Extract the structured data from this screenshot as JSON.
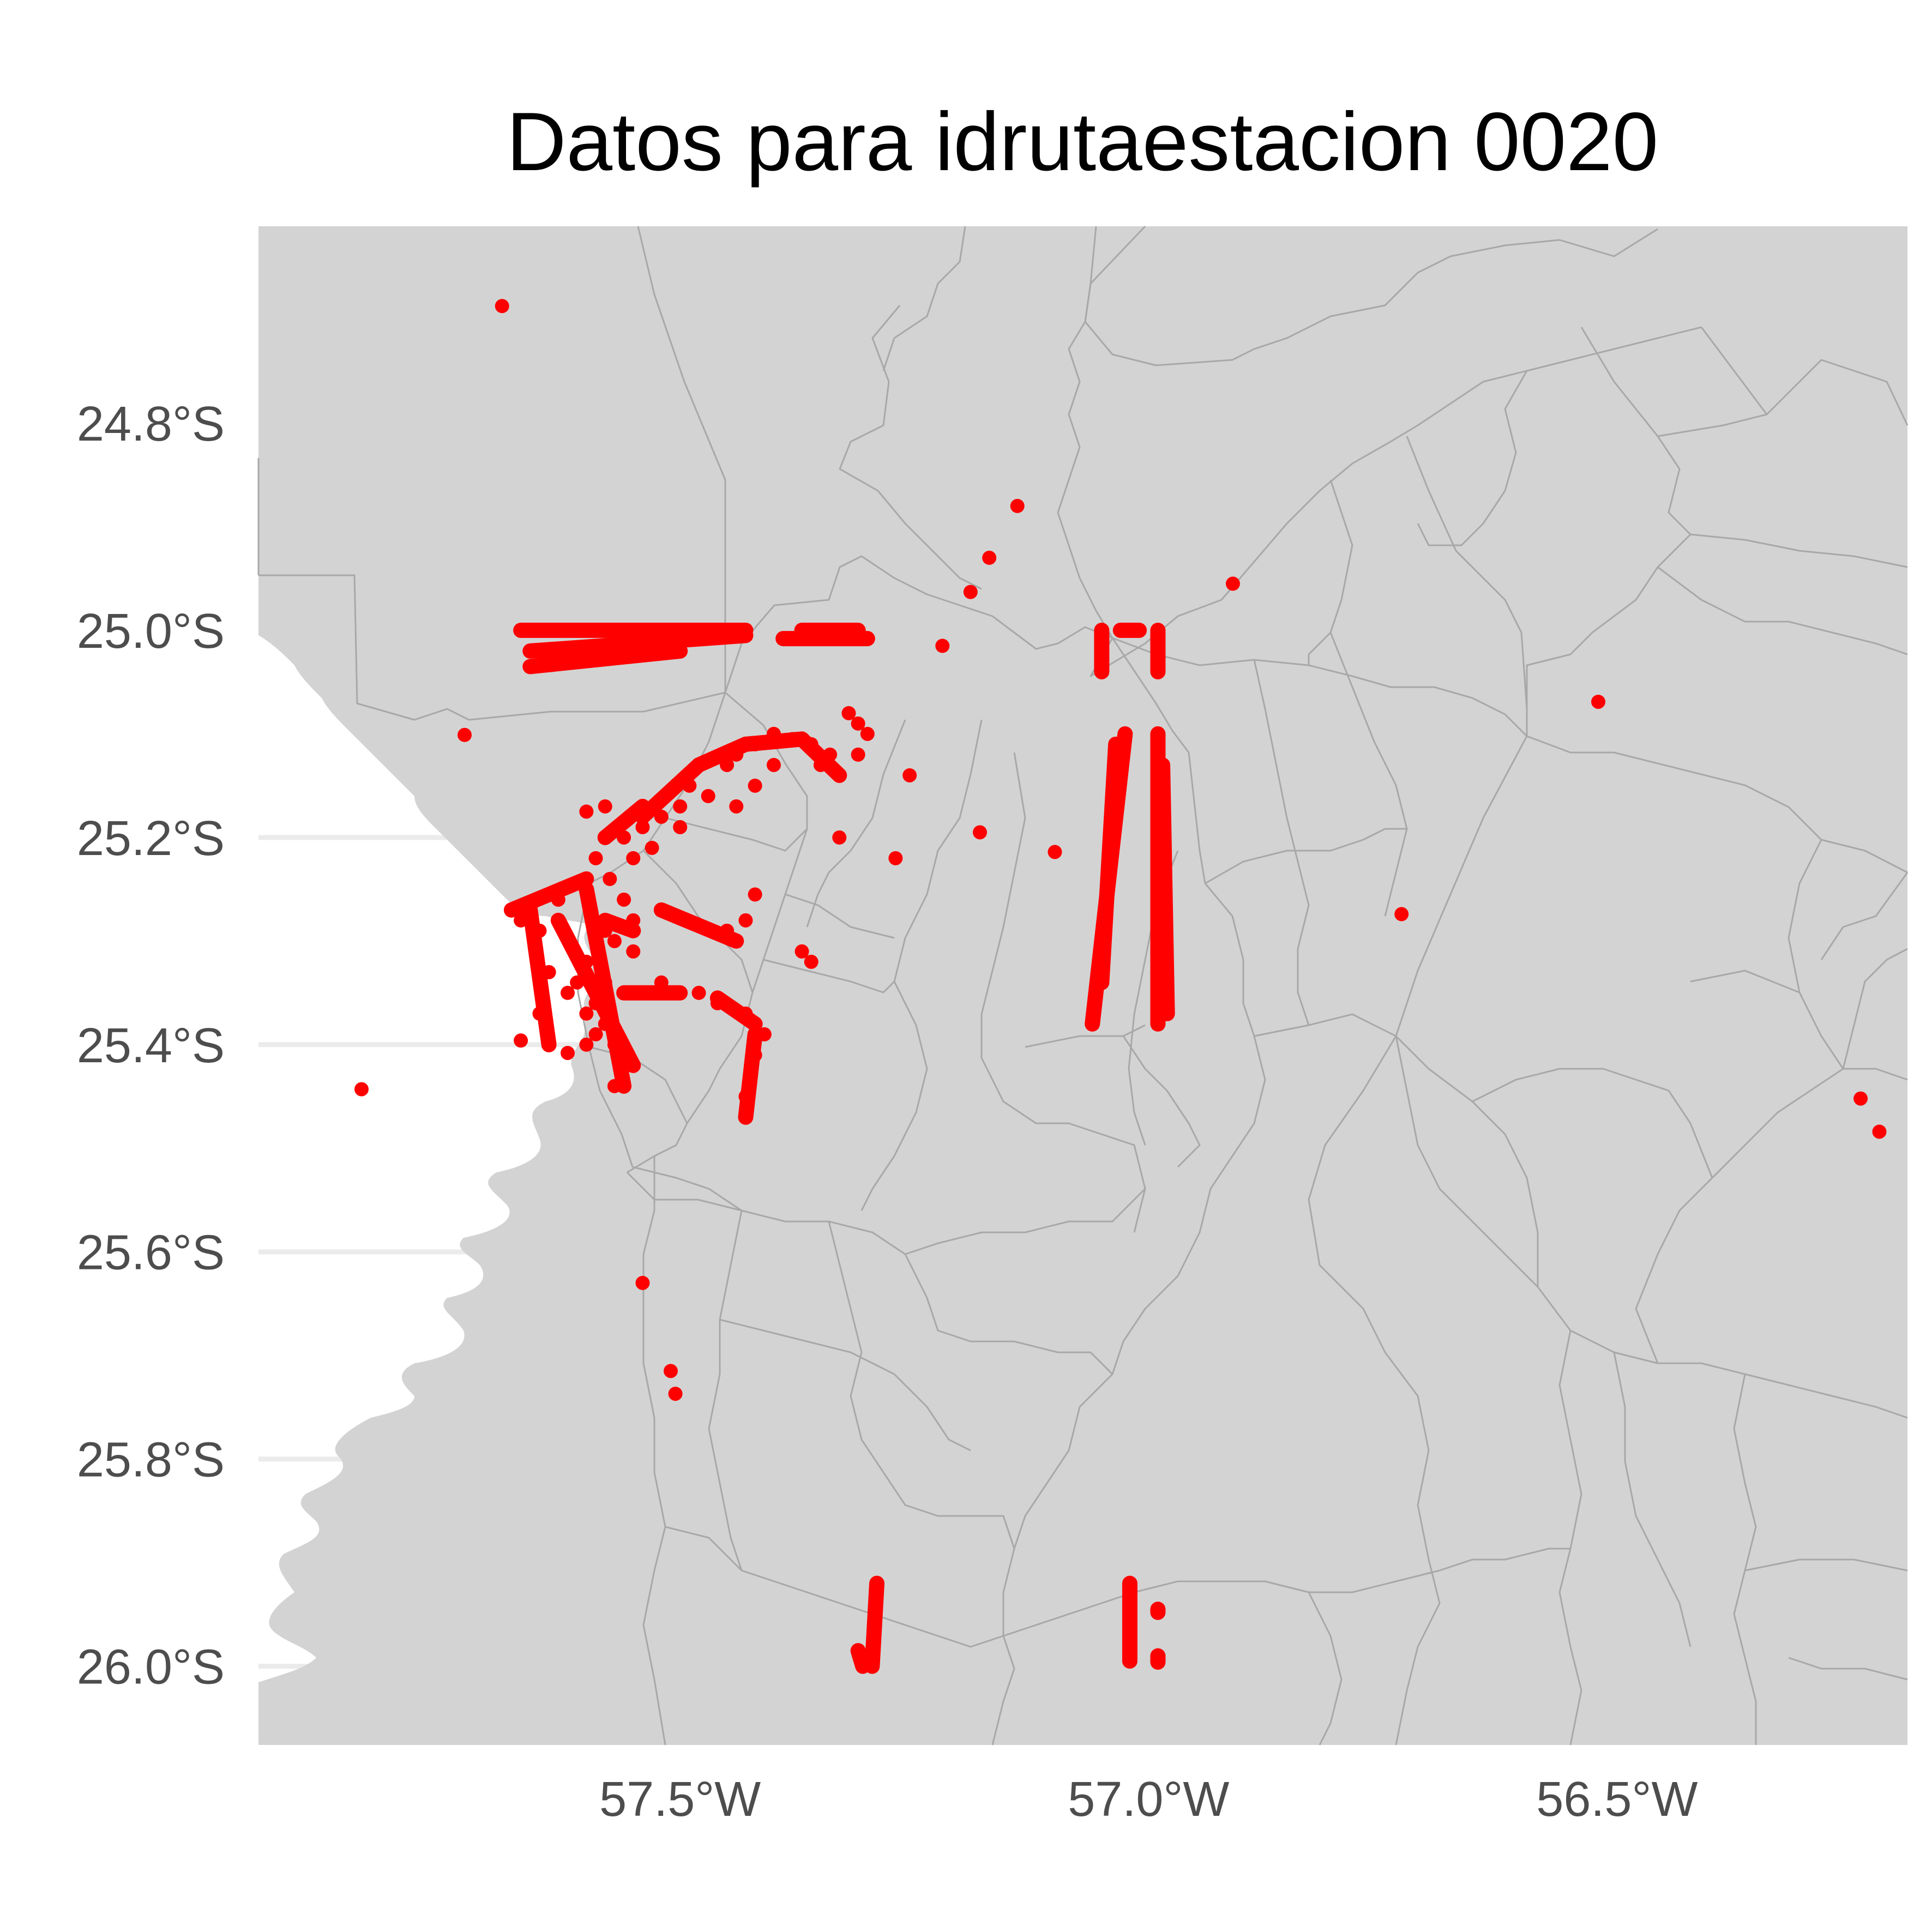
{
  "title": "Datos para idrutaestacion 0020",
  "axes": {
    "x_ticks": [
      {
        "value": -57.5,
        "label": "57.5°W"
      },
      {
        "value": -57.0,
        "label": "57.0°W"
      },
      {
        "value": -56.5,
        "label": "56.5°W"
      }
    ],
    "y_ticks": [
      {
        "value": -24.8,
        "label": "24.8°S"
      },
      {
        "value": -25.0,
        "label": "25.0°S"
      },
      {
        "value": -25.2,
        "label": "25.2°S"
      },
      {
        "value": -25.4,
        "label": "25.4°S"
      },
      {
        "value": -25.6,
        "label": "25.6°S"
      },
      {
        "value": -25.8,
        "label": "25.8°S"
      },
      {
        "value": -26.0,
        "label": "26.0°S"
      }
    ],
    "lon_range": [
      -57.95,
      -56.19
    ],
    "lat_range": [
      -26.076,
      -24.61
    ]
  },
  "colors": {
    "land": "#d3d3d3",
    "border": "#a8a8a8",
    "point": "#ff0000",
    "water": "#ffffff",
    "grid": "#ebebeb"
  },
  "map_data": {
    "type": "scatter-map",
    "points": [
      [
        -57.69,
        -24.687
      ],
      [
        -57.73,
        -25.101
      ],
      [
        -57.84,
        -25.443
      ],
      [
        -57.14,
        -24.88
      ],
      [
        -57.17,
        -24.93
      ],
      [
        -57.19,
        -24.963
      ],
      [
        -57.22,
        -25.015
      ],
      [
        -56.91,
        -24.955
      ],
      [
        -56.52,
        -25.069
      ],
      [
        -56.73,
        -25.274
      ],
      [
        -57.27,
        -25.22
      ],
      [
        -57.18,
        -25.195
      ],
      [
        -57.1,
        -25.214
      ],
      [
        -56.24,
        -25.452
      ],
      [
        -56.22,
        -25.484
      ],
      [
        -57.54,
        -25.63
      ],
      [
        -57.51,
        -25.715
      ],
      [
        -57.505,
        -25.737
      ],
      [
        -57.67,
        -25.396
      ],
      [
        -57.62,
        -25.408
      ],
      [
        -57.6,
        -25.4
      ],
      [
        -57.57,
        -25.44
      ],
      [
        -57.59,
        -25.39
      ],
      [
        -57.55,
        -25.42
      ],
      [
        -57.43,
        -25.47
      ],
      [
        -57.43,
        -25.45
      ],
      [
        -57.425,
        -25.43
      ],
      [
        -57.42,
        -25.41
      ],
      [
        -57.41,
        -25.39
      ],
      [
        -57.43,
        -25.37
      ],
      [
        -57.46,
        -25.36
      ],
      [
        -57.48,
        -25.35
      ],
      [
        -57.52,
        -25.34
      ],
      [
        -57.55,
        -25.35
      ],
      [
        -57.58,
        -25.34
      ],
      [
        -57.58,
        -25.29
      ],
      [
        -57.55,
        -25.28
      ],
      [
        -57.52,
        -25.27
      ],
      [
        -57.45,
        -25.29
      ],
      [
        -57.43,
        -25.28
      ],
      [
        -57.42,
        -25.255
      ],
      [
        -57.37,
        -25.31
      ],
      [
        -57.36,
        -25.32
      ],
      [
        -57.57,
        -25.3
      ],
      [
        -57.55,
        -25.31
      ],
      [
        -57.6,
        -25.32
      ],
      [
        -57.63,
        -25.26
      ],
      [
        -57.65,
        -25.29
      ],
      [
        -57.67,
        -25.28
      ],
      [
        -57.62,
        -25.35
      ],
      [
        -57.6,
        -25.37
      ],
      [
        -57.65,
        -25.37
      ],
      [
        -57.64,
        -25.33
      ],
      [
        -57.61,
        -25.34
      ],
      [
        -57.59,
        -25.36
      ],
      [
        -57.58,
        -25.38
      ],
      [
        -57.57,
        -25.4
      ],
      [
        -57.56,
        -25.26
      ],
      [
        -57.575,
        -25.24
      ],
      [
        -57.6,
        -25.25
      ],
      [
        -57.59,
        -25.22
      ],
      [
        -57.58,
        -25.2
      ],
      [
        -57.56,
        -25.2
      ],
      [
        -57.54,
        -25.19
      ],
      [
        -57.52,
        -25.18
      ],
      [
        -57.5,
        -25.17
      ],
      [
        -57.49,
        -25.15
      ],
      [
        -57.47,
        -25.16
      ],
      [
        -57.45,
        -25.13
      ],
      [
        -57.44,
        -25.12
      ],
      [
        -57.42,
        -25.11
      ],
      [
        -57.4,
        -25.1
      ],
      [
        -57.38,
        -25.105
      ],
      [
        -57.36,
        -25.11
      ],
      [
        -57.35,
        -25.13
      ],
      [
        -57.33,
        -25.14
      ],
      [
        -57.31,
        -25.12
      ],
      [
        -57.3,
        -25.1
      ],
      [
        -57.32,
        -25.08
      ],
      [
        -57.31,
        -25.09
      ],
      [
        -57.34,
        -25.12
      ],
      [
        -57.4,
        -25.13
      ],
      [
        -57.42,
        -25.15
      ],
      [
        -57.44,
        -25.17
      ],
      [
        -57.5,
        -25.19
      ],
      [
        -57.53,
        -25.21
      ],
      [
        -57.55,
        -25.22
      ],
      [
        -57.6,
        -25.175
      ],
      [
        -57.58,
        -25.17
      ],
      [
        -57.255,
        -25.14
      ],
      [
        -57.33,
        -25.2
      ]
    ],
    "tracks": [
      {
        "from": [
          -57.67,
          -25.0
        ],
        "to": [
          -57.43,
          -25.0
        ]
      },
      {
        "from": [
          -57.66,
          -25.02
        ],
        "to": [
          -57.43,
          -25.005
        ]
      },
      {
        "from": [
          -57.66,
          -25.035
        ],
        "to": [
          -57.5,
          -25.02
        ]
      },
      {
        "from": [
          -57.39,
          -25.008
        ],
        "to": [
          -57.3,
          -25.008
        ]
      },
      {
        "from": [
          -57.37,
          -25.0
        ],
        "to": [
          -57.31,
          -25.0
        ]
      },
      {
        "from": [
          -57.05,
          -25.0
        ],
        "to": [
          -57.05,
          -25.04
        ]
      },
      {
        "from": [
          -57.03,
          -25.0
        ],
        "to": [
          -57.01,
          -25.0
        ]
      },
      {
        "from": [
          -56.99,
          -25.0
        ],
        "to": [
          -56.99,
          -25.04
        ]
      },
      {
        "from": [
          -57.025,
          -25.1
        ],
        "to": [
          -57.06,
          -25.38
        ]
      },
      {
        "from": [
          -57.035,
          -25.11
        ],
        "to": [
          -57.05,
          -25.34
        ]
      },
      {
        "from": [
          -56.99,
          -25.1
        ],
        "to": [
          -56.99,
          -25.38
        ]
      },
      {
        "from": [
          -56.985,
          -25.13
        ],
        "to": [
          -56.98,
          -25.37
        ]
      },
      {
        "from": [
          -57.29,
          -25.92
        ],
        "to": [
          -57.295,
          -26.0
        ]
      },
      {
        "from": [
          -57.31,
          -25.985
        ],
        "to": [
          -57.305,
          -26.0
        ]
      },
      {
        "from": [
          -57.02,
          -25.92
        ],
        "to": [
          -57.02,
          -25.995
        ]
      },
      {
        "from": [
          -56.99,
          -25.945
        ],
        "to": [
          -56.99,
          -25.948
        ]
      },
      {
        "from": [
          -56.99,
          -25.99
        ],
        "to": [
          -56.99,
          -25.996
        ]
      },
      {
        "from": [
          -57.68,
          -25.27
        ],
        "to": [
          -57.6,
          -25.24
        ]
      },
      {
        "from": [
          -57.66,
          -25.27
        ],
        "to": [
          -57.64,
          -25.4
        ]
      },
      {
        "from": [
          -57.63,
          -25.28
        ],
        "to": [
          -57.55,
          -25.42
        ]
      },
      {
        "from": [
          -57.6,
          -25.25
        ],
        "to": [
          -57.56,
          -25.44
        ]
      },
      {
        "from": [
          -57.58,
          -25.2
        ],
        "to": [
          -57.54,
          -25.17
        ]
      },
      {
        "from": [
          -57.54,
          -25.18
        ],
        "to": [
          -57.48,
          -25.13
        ]
      },
      {
        "from": [
          -57.48,
          -25.13
        ],
        "to": [
          -57.43,
          -25.11
        ]
      },
      {
        "from": [
          -57.43,
          -25.11
        ],
        "to": [
          -57.37,
          -25.105
        ]
      },
      {
        "from": [
          -57.37,
          -25.105
        ],
        "to": [
          -57.33,
          -25.14
        ]
      },
      {
        "from": [
          -57.52,
          -25.27
        ],
        "to": [
          -57.44,
          -25.3
        ]
      },
      {
        "from": [
          -57.55,
          -25.29
        ],
        "to": [
          -57.58,
          -25.28
        ]
      },
      {
        "from": [
          -57.56,
          -25.35
        ],
        "to": [
          -57.5,
          -25.35
        ]
      },
      {
        "from": [
          -57.46,
          -25.355
        ],
        "to": [
          -57.42,
          -25.38
        ]
      },
      {
        "from": [
          -57.42,
          -25.39
        ],
        "to": [
          -57.43,
          -25.47
        ]
      }
    ]
  }
}
